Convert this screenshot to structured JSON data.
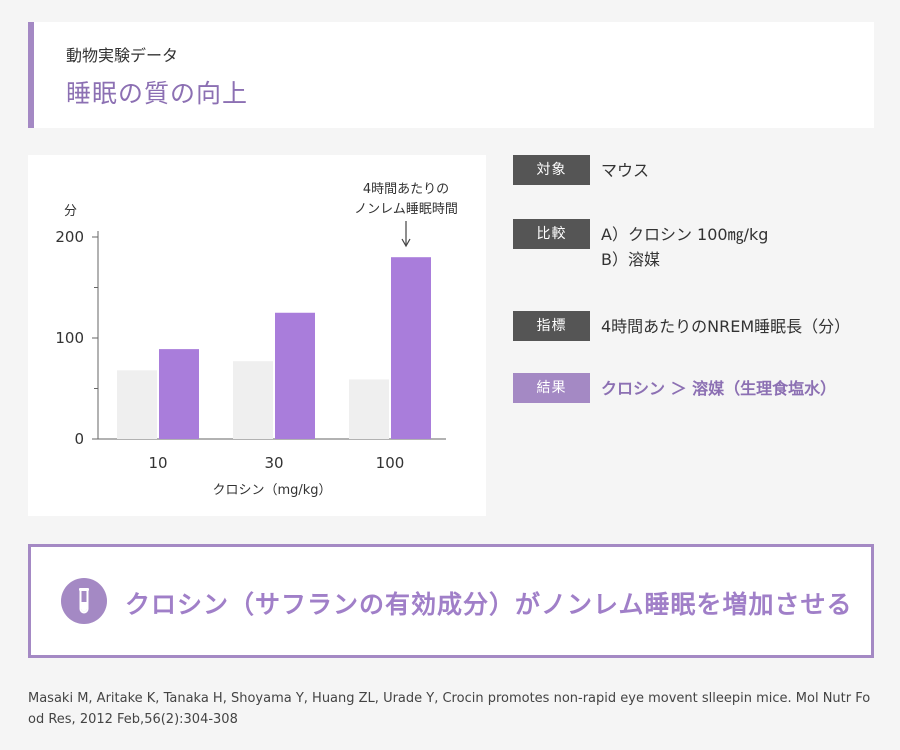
{
  "header": {
    "subtitle": "動物実験データ",
    "title": "睡眠の質の向上"
  },
  "chart_data": {
    "type": "bar",
    "yunit": "分",
    "xlabel": "クロシン（mg/kg）",
    "categories": [
      "10",
      "30",
      "100"
    ],
    "series": [
      {
        "values": [
          68,
          77,
          59
        ],
        "color": "#efefef"
      },
      {
        "values": [
          89,
          125,
          180
        ],
        "color": "#a97ddb"
      }
    ],
    "ylim": [
      0,
      200
    ],
    "yticks": [
      0,
      100,
      200
    ],
    "annotation": {
      "lines": [
        "4時間あたりの",
        "ノンレム睡眠時間"
      ],
      "target_category": "100"
    }
  },
  "info": {
    "rows": [
      {
        "tag": "対象",
        "lines": [
          "マウス"
        ]
      },
      {
        "tag": "比較",
        "lines": [
          "A）クロシン 100㎎/kg",
          "B）溶媒"
        ]
      },
      {
        "tag": "指標",
        "lines": [
          "4時間あたりのNREM睡眠長（分）"
        ]
      },
      {
        "tag": "結果",
        "lines": [
          "クロシン ＞ 溶媒（生理食塩水）"
        ]
      }
    ]
  },
  "summary": {
    "icon": "test-tube-icon",
    "text": "クロシン（サフランの有効成分）がノンレム睡眠を増加させる"
  },
  "citation": "Masaki M, Aritake K, Tanaka H, Shoyama Y, Huang ZL, Urade Y, Crocin promotes non-rapid eye movent slleepin mice. Mol Nutr Food Res, 2012 Feb,56(2):304-308"
}
